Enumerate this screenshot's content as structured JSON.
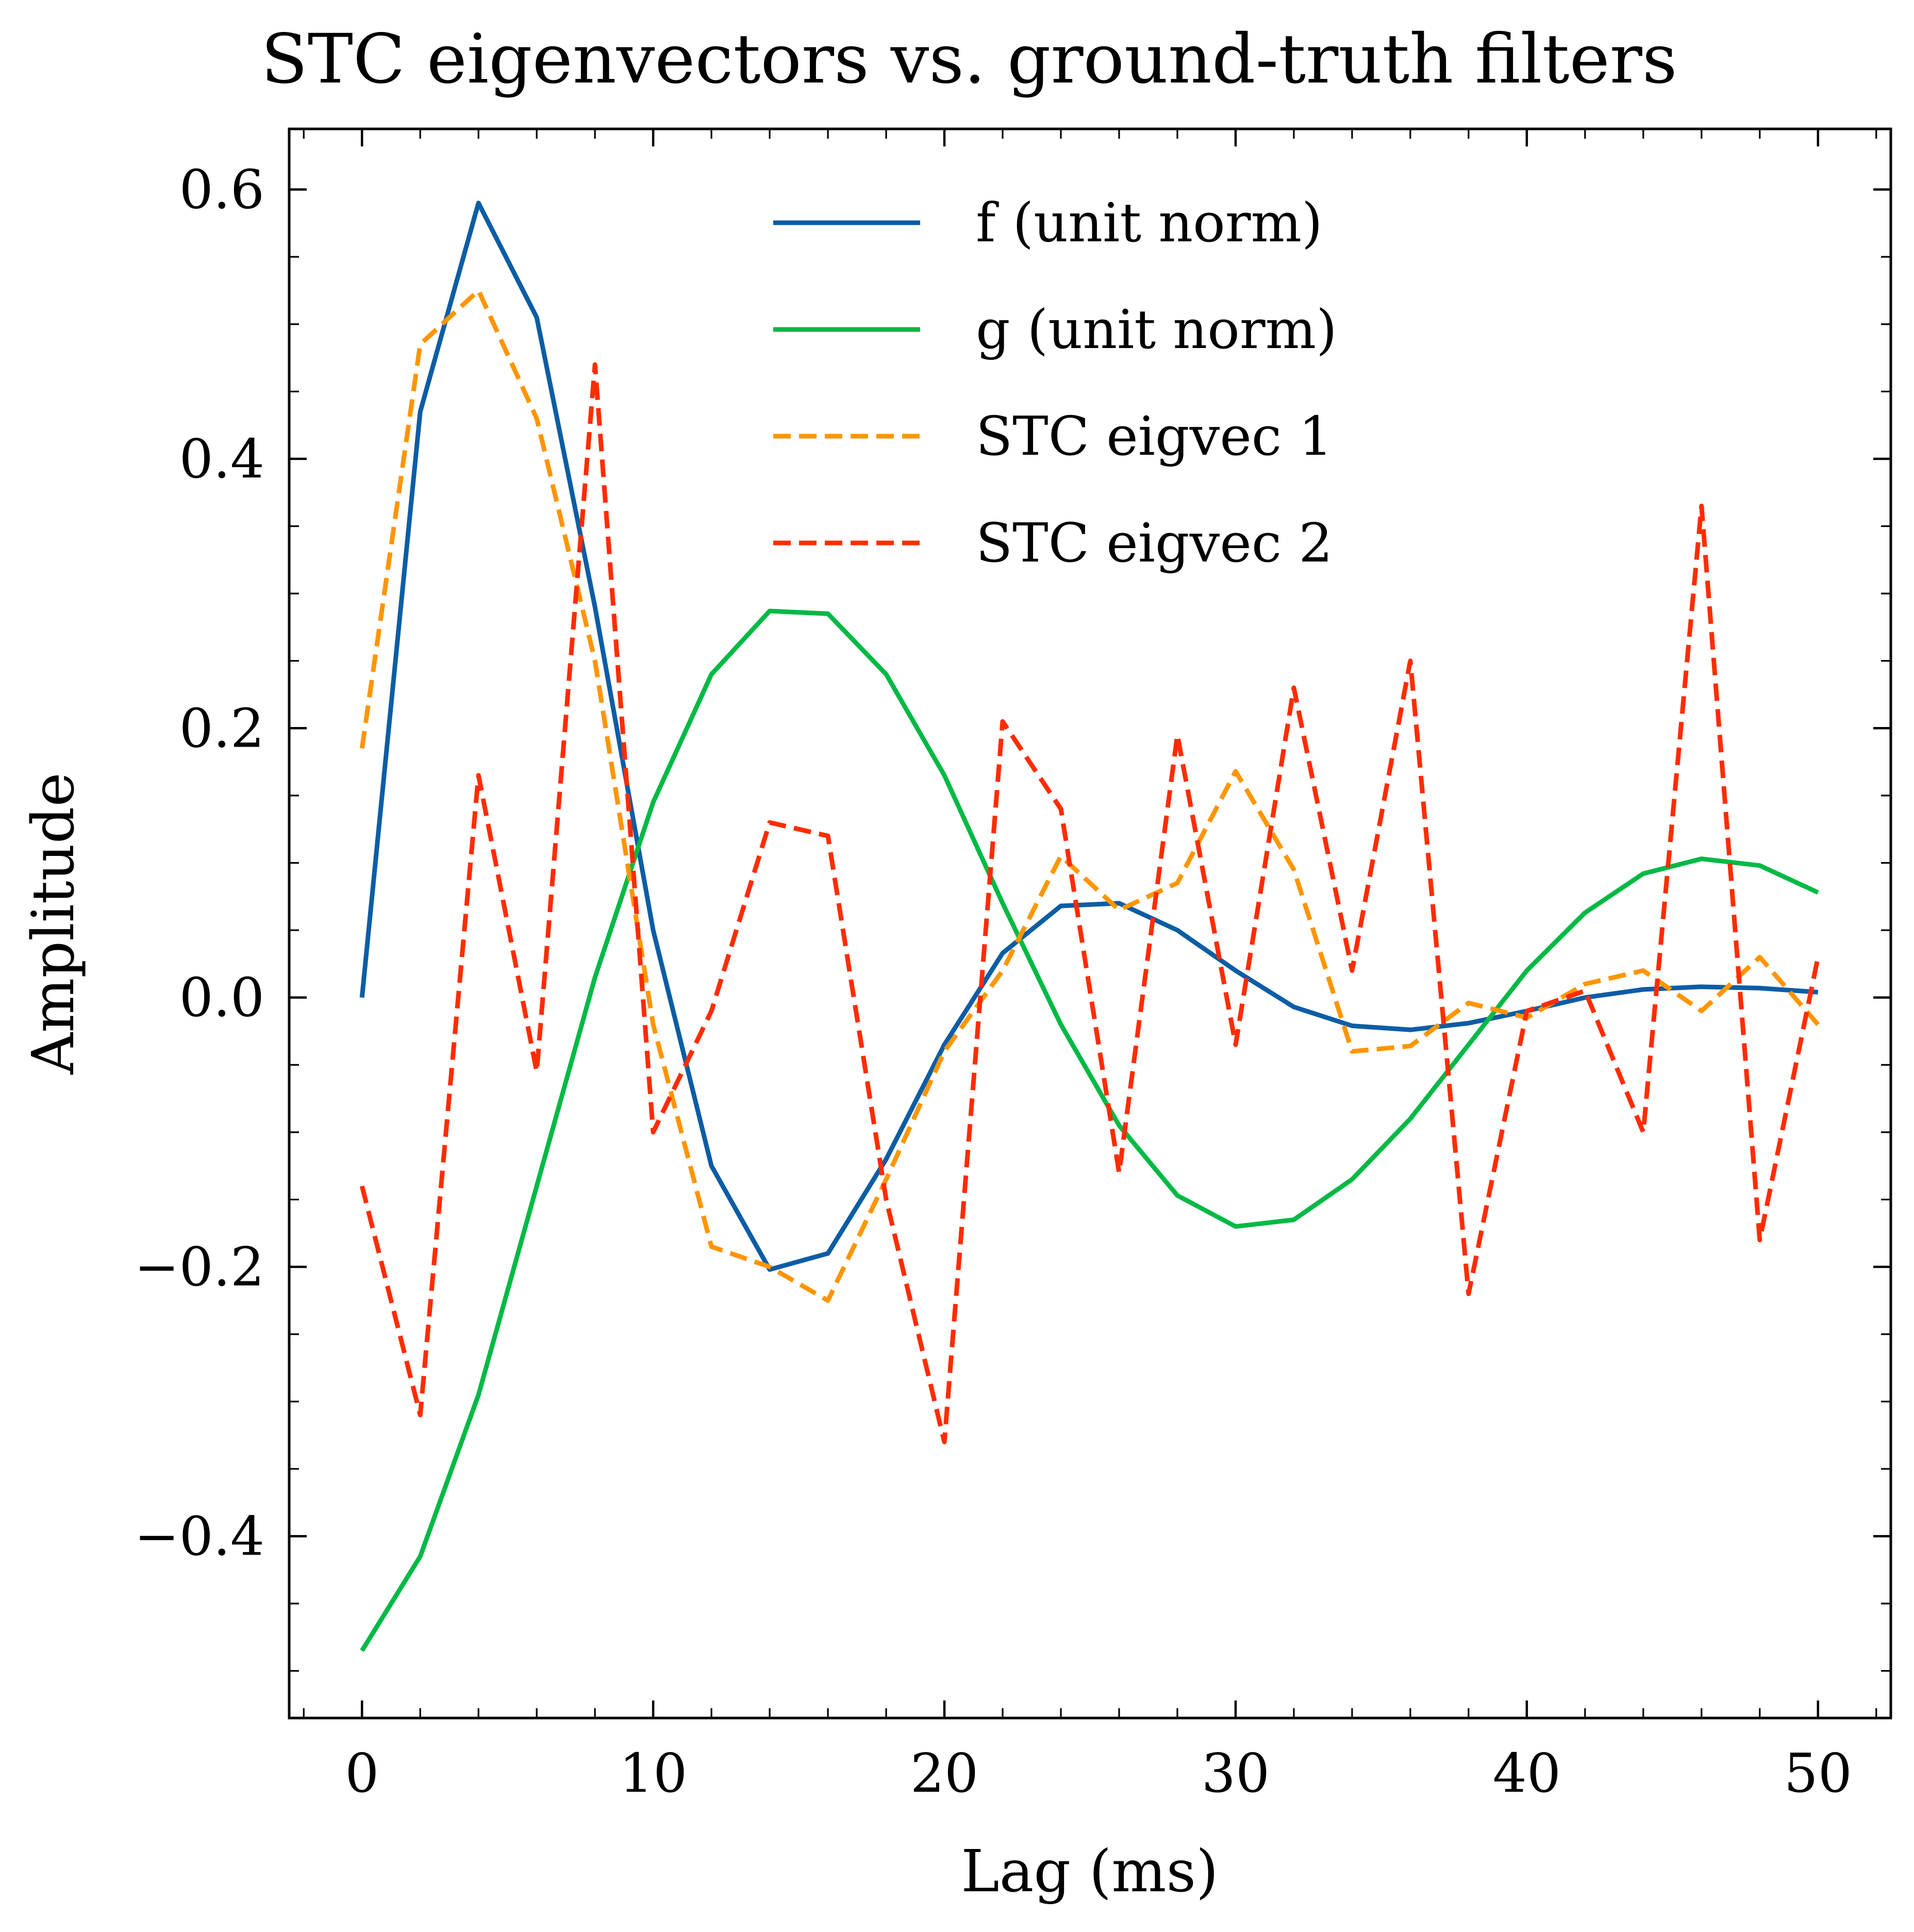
{
  "chart_data": {
    "type": "line",
    "title": "STC eigenvectors vs. ground-truth filters",
    "xlabel": "Lag (ms)",
    "ylabel": "Amplitude",
    "xlim": [
      -2.5,
      52.5
    ],
    "ylim": [
      -0.535,
      0.645
    ],
    "xticks": [
      0,
      10,
      20,
      30,
      40,
      50
    ],
    "xtick_labels": [
      "0",
      "10",
      "20",
      "30",
      "40",
      "50"
    ],
    "yticks": [
      -0.4,
      -0.2,
      0.0,
      0.2,
      0.4,
      0.6
    ],
    "ytick_labels": [
      "−0.4",
      "−0.2",
      "0.0",
      "0.2",
      "0.4",
      "0.6"
    ],
    "legend_position": "top-center",
    "grid": false,
    "x": [
      0,
      2,
      4,
      6,
      8,
      10,
      12,
      14,
      16,
      18,
      20,
      22,
      24,
      26,
      28,
      30,
      32,
      34,
      36,
      38,
      40,
      42,
      44,
      46,
      48,
      50
    ],
    "series": [
      {
        "name": "f (unit norm)",
        "color": "#0c5da5",
        "dash": "solid",
        "values": [
          0.0,
          0.435,
          0.59,
          0.505,
          0.29,
          0.05,
          -0.125,
          -0.202,
          -0.19,
          -0.12,
          -0.035,
          0.033,
          0.068,
          0.07,
          0.05,
          0.02,
          -0.007,
          -0.021,
          -0.024,
          -0.019,
          -0.01,
          0.0,
          0.006,
          0.008,
          0.007,
          0.004
        ]
      },
      {
        "name": "g (unit norm)",
        "color": "#00b945",
        "dash": "solid",
        "values": [
          -0.485,
          -0.415,
          -0.295,
          -0.14,
          0.015,
          0.145,
          0.24,
          0.287,
          0.285,
          0.24,
          0.165,
          0.07,
          -0.02,
          -0.095,
          -0.147,
          -0.17,
          -0.165,
          -0.135,
          -0.09,
          -0.035,
          0.02,
          0.063,
          0.092,
          0.103,
          0.098,
          0.078
        ]
      },
      {
        "name": "STC eigvec 1",
        "color": "#ff9500",
        "dash": "dashed",
        "values": [
          0.185,
          0.485,
          0.525,
          0.43,
          0.25,
          -0.02,
          -0.185,
          -0.2,
          -0.225,
          -0.135,
          -0.04,
          0.02,
          0.105,
          0.065,
          0.085,
          0.168,
          0.095,
          -0.04,
          -0.036,
          -0.004,
          -0.015,
          0.01,
          0.02,
          -0.01,
          0.03,
          -0.02
        ]
      },
      {
        "name": "STC eigvec 2",
        "color": "#ff2c00",
        "dash": "dashed",
        "values": [
          -0.14,
          -0.31,
          0.165,
          -0.055,
          0.47,
          -0.1,
          -0.01,
          0.13,
          0.12,
          -0.15,
          -0.33,
          0.205,
          0.14,
          -0.13,
          0.195,
          -0.035,
          0.23,
          0.02,
          0.25,
          -0.22,
          -0.01,
          0.005,
          -0.1,
          0.365,
          -0.18,
          0.03
        ]
      }
    ]
  }
}
